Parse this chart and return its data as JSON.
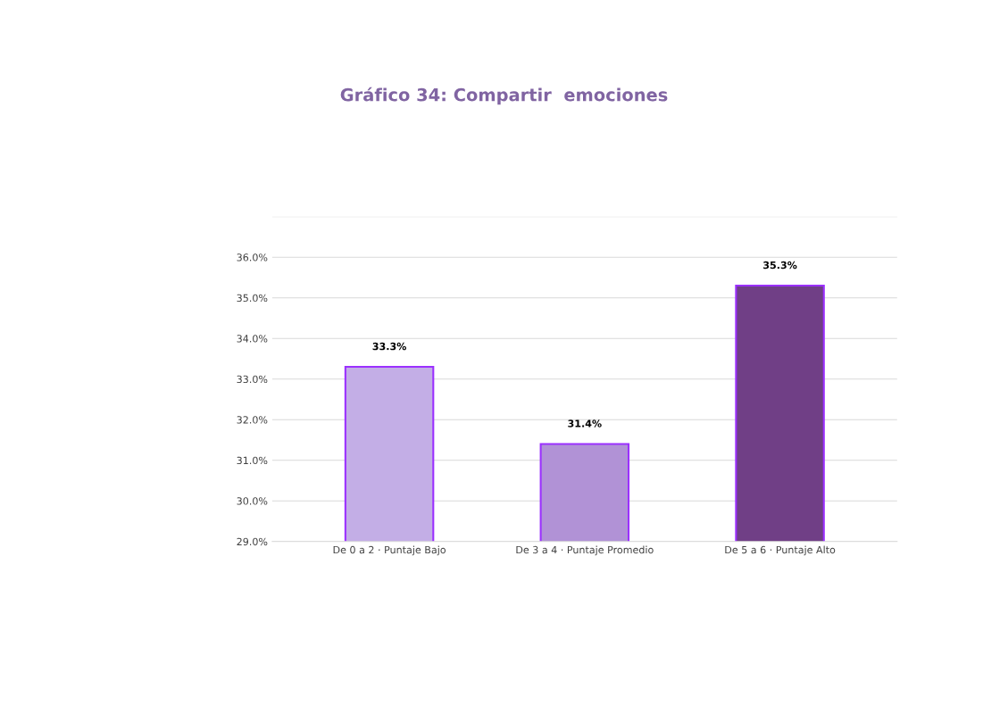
{
  "chart_data": {
    "type": "bar",
    "title": "Gráfico 34: Compartir  emociones",
    "categories": [
      "De 0 a 2 · Puntaje Bajo",
      "De 3 a 4 · Puntaje Promedio",
      "De 5 a 6 · Puntaje Alto"
    ],
    "values": [
      33.3,
      31.4,
      35.3
    ],
    "colors": [
      "#c3aee6",
      "#b192d6",
      "#703f86"
    ],
    "value_labels": [
      "33.3%",
      "31.4%",
      "35.3%"
    ],
    "ylim": [
      29,
      37
    ],
    "yticks": [
      {
        "value": 29,
        "label": "29.0%"
      },
      {
        "value": 30,
        "label": "30.0%"
      },
      {
        "value": 31,
        "label": "31.0%"
      },
      {
        "value": 32,
        "label": "32.0%"
      },
      {
        "value": 33,
        "label": "33.0%"
      },
      {
        "value": 34,
        "label": "34.0%"
      },
      {
        "value": 35,
        "label": "35.0%"
      },
      {
        "value": 36,
        "label": "36.0%"
      },
      {
        "value": 37,
        "label": null
      }
    ],
    "grid": "y"
  }
}
